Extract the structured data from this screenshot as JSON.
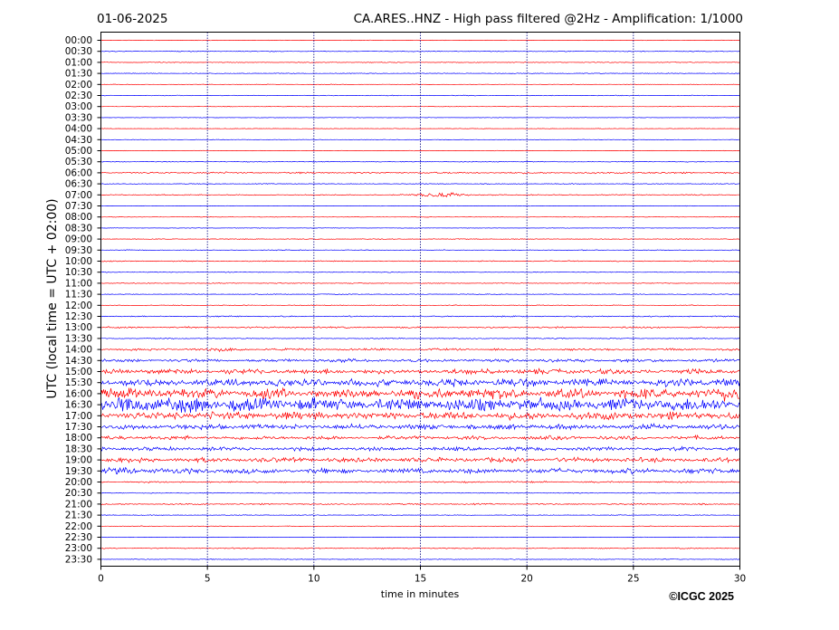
{
  "header": {
    "date": "01-06-2025",
    "title": "CA.ARES..HNZ - High pass filtered @2Hz - Amplification: 1/1000"
  },
  "copyright": "©ICGC 2025",
  "colors": {
    "red": "#ff0000",
    "blue": "#0000ff",
    "grid": "#000080"
  },
  "chart_data": {
    "type": "line",
    "title": "CA.ARES..HNZ - High pass filtered @2Hz - Amplification: 1/1000",
    "xlabel": "time in minutes",
    "ylabel": "UTC (local time = UTC + 02:00)",
    "xlim": [
      0,
      30
    ],
    "xticks": [
      "0",
      "5",
      "10",
      "15",
      "20",
      "25",
      "30"
    ],
    "vertical_grid": [
      5,
      10,
      15,
      20,
      25
    ],
    "rows": [
      "00:00",
      "00:30",
      "01:00",
      "01:30",
      "02:00",
      "02:30",
      "03:00",
      "03:30",
      "04:00",
      "04:30",
      "05:00",
      "05:30",
      "06:00",
      "06:30",
      "07:00",
      "07:30",
      "08:00",
      "08:30",
      "09:00",
      "09:30",
      "10:00",
      "10:30",
      "11:00",
      "11:30",
      "12:00",
      "12:30",
      "13:00",
      "13:30",
      "14:00",
      "14:30",
      "15:00",
      "15:30",
      "16:00",
      "16:30",
      "17:00",
      "17:30",
      "18:00",
      "18:30",
      "19:00",
      "19:30",
      "20:00",
      "20:30",
      "21:00",
      "21:30",
      "22:00",
      "22:30",
      "23:00",
      "23:30"
    ],
    "row_colors": "alternating red (even rows) / blue (odd rows)",
    "activity_level": [
      0.2,
      0.3,
      0.3,
      0.3,
      0.2,
      0.3,
      0.2,
      0.2,
      0.2,
      0.2,
      0.2,
      0.3,
      0.6,
      0.3,
      0.4,
      0.2,
      0.2,
      0.2,
      0.3,
      0.3,
      0.4,
      0.3,
      0.3,
      0.3,
      0.3,
      0.5,
      0.6,
      0.4,
      0.8,
      1.2,
      2.0,
      3.0,
      4.0,
      5.0,
      3.0,
      2.0,
      1.5,
      1.5,
      1.8,
      2.0,
      0.6,
      0.3,
      0.5,
      0.3,
      0.2,
      0.2,
      0.4,
      0.3
    ],
    "events": [
      {
        "row": "07:00",
        "minute": 15.6,
        "amplitude": 1.5
      },
      {
        "row": "07:00",
        "minute": 16.3,
        "amplitude": 1.5
      },
      {
        "row": "14:00",
        "minute": 5.8,
        "amplitude": 1.0
      },
      {
        "row": "16:30",
        "minute": 1.5,
        "amplitude": 4.0
      },
      {
        "row": "16:30",
        "minute": 4.5,
        "amplitude": 3.0
      },
      {
        "row": "16:00",
        "minute": 29.6,
        "amplitude": 2.0
      },
      {
        "row": "19:30",
        "minute": 1.3,
        "amplitude": 1.0
      }
    ]
  }
}
